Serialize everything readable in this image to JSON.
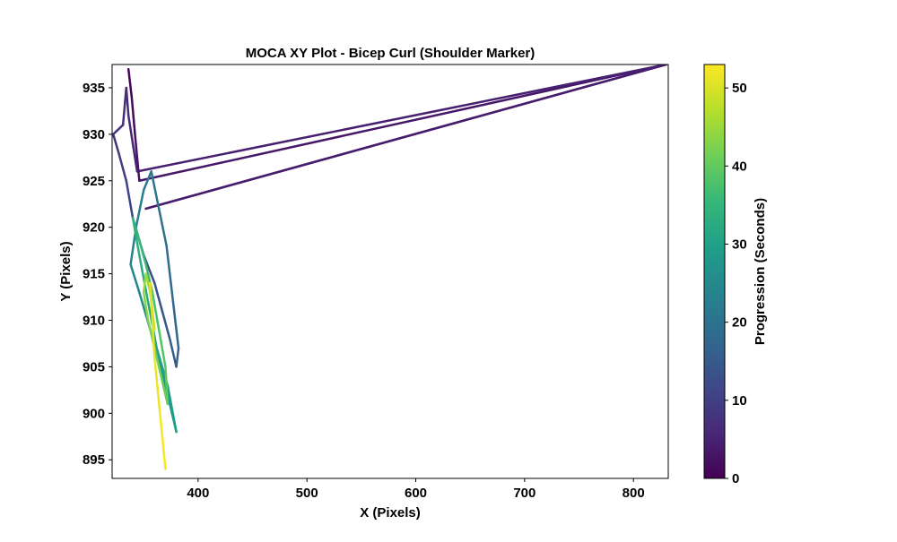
{
  "chart_data": {
    "type": "line",
    "title": "MOCA XY Plot - Bicep Curl (Shoulder Marker)",
    "xlabel": "X (Pixels)",
    "ylabel": "Y (Pixels)",
    "xlim": [
      321,
      832
    ],
    "ylim": [
      893,
      937.5
    ],
    "x_ticks": [
      400,
      500,
      600,
      700,
      800
    ],
    "y_ticks": [
      895,
      900,
      905,
      910,
      915,
      920,
      925,
      930,
      935
    ],
    "grid": false,
    "colorbar": {
      "label": "Progression (Seconds)",
      "colormap": "viridis",
      "range": [
        0,
        53
      ],
      "ticks": [
        0,
        10,
        20,
        30,
        40,
        50
      ]
    },
    "series": [
      {
        "t": [
          0,
          1,
          2,
          3,
          3.5,
          4,
          4.5,
          5,
          5.5,
          6,
          6.5,
          7,
          8,
          9,
          10,
          11,
          12,
          13,
          14,
          15,
          16,
          17,
          18,
          19,
          20,
          21,
          22,
          23,
          24,
          25,
          26,
          27,
          28,
          29,
          30,
          31,
          32,
          33,
          34,
          35,
          36,
          37,
          38,
          39,
          40,
          41,
          42,
          43,
          44,
          45,
          46,
          47,
          48,
          49,
          50,
          51,
          52,
          53
        ],
        "x": [
          336,
          339,
          342,
          346,
          830,
          352,
          830,
          344,
          340,
          336,
          334,
          331,
          322,
          327,
          334,
          340,
          350,
          360,
          367,
          374,
          380,
          382,
          377,
          371,
          364,
          357,
          350,
          343,
          338,
          346,
          356,
          366,
          374,
          380,
          372,
          362,
          354,
          346,
          340,
          345,
          352,
          358,
          364,
          370,
          372,
          366,
          360,
          354,
          350,
          352,
          356,
          358,
          360,
          357,
          356,
          360,
          365,
          370
        ],
        "y": [
          937,
          934,
          930,
          925,
          937.5,
          922,
          937.5,
          926,
          929,
          932,
          935,
          931,
          930,
          928,
          925,
          921,
          917,
          914,
          911,
          908,
          905,
          907,
          912,
          918,
          922,
          926,
          924,
          920,
          916,
          913,
          909,
          905,
          901,
          898,
          903,
          907,
          912,
          917,
          921,
          919,
          916,
          913,
          909,
          905,
          901,
          904,
          907,
          910,
          913,
          915,
          913,
          911,
          909,
          912,
          914,
          906,
          900,
          894
        ]
      }
    ]
  }
}
